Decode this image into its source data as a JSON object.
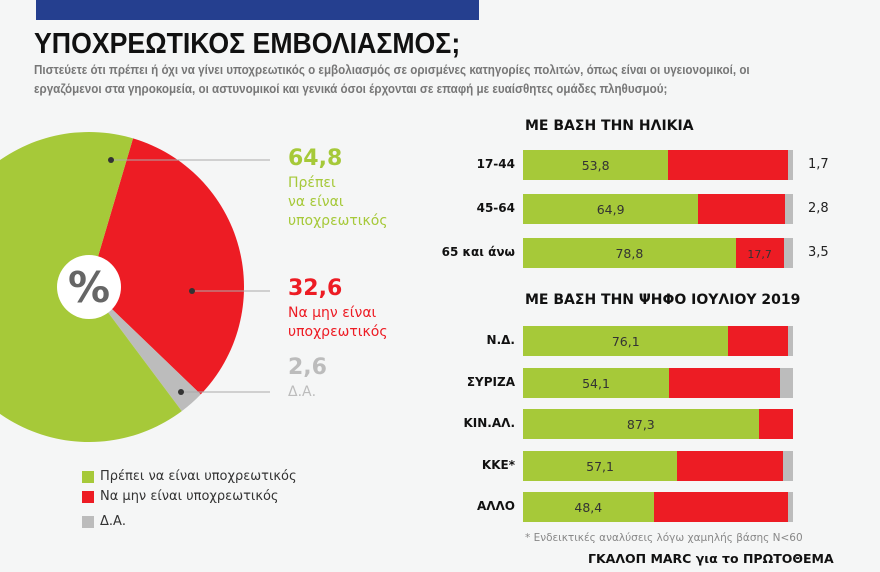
{
  "header": {
    "title": "ΥΠΟΧΡΕΩΤΙΚΟΣ ΕΜΒΟΛΙΑΣΜΟΣ;",
    "subtitle": "Πιστεύετε ότι πρέπει ή όχι να γίνει υποχρεωτικός ο εμβολιασμός σε ορισμένες κατηγορίες πολιτών, όπως είναι οι υγειονομικοί, οι εργαζόμενοι στα γηροκομεία, οι αστυνομικοί και γενικά όσοι έρχονται σε επαφή με ευαίσθητες ομάδες πληθυσμού;"
  },
  "colors": {
    "yes": "#a6c939",
    "no": "#ed1c24",
    "na": "#bcbcbc",
    "brand": "#253f8f"
  },
  "chart_data": [
    {
      "type": "pie",
      "center_label": "%",
      "slices": [
        {
          "name": "Πρέπει να είναι υποχρεωτικός",
          "value": 64.8,
          "label": "64,8",
          "text1": "Πρέπει",
          "text2": "να είναι",
          "text3": "υποχρεωτικός"
        },
        {
          "name": "Να μην είναι υποχρεωτικός",
          "value": 32.6,
          "label": "32,6",
          "text1": "Να μην είναι",
          "text2": "υποχρεωτικός"
        },
        {
          "name": "Δ.Α.",
          "value": 2.6,
          "label": "2,6",
          "text1": "Δ.Α."
        }
      ],
      "legend": [
        "Πρέπει να είναι υποχρεωτικός",
        "Να μην είναι υποχρεωτικός",
        "Δ.Α."
      ],
      "legend_placement": "bottom"
    },
    {
      "type": "bar",
      "stacked": true,
      "orientation": "horizontal",
      "title": "ΜΕ ΒΑΣΗ ΤΗΝ ΗΛΙΚΙΑ",
      "categories": [
        "17-44",
        "45-64",
        "65 και άνω"
      ],
      "series": [
        {
          "values": [
            53.8,
            64.9,
            78.8
          ],
          "labels": [
            "53,8",
            "64,9",
            "78,8"
          ]
        },
        {
          "values": [
            44.5,
            32.3,
            17.7
          ],
          "labels": [
            "",
            "",
            "17,7"
          ]
        },
        {
          "values": [
            1.7,
            2.8,
            3.5
          ],
          "labels": [
            "1,7",
            "2,8",
            "3,5"
          ]
        }
      ]
    },
    {
      "type": "bar",
      "stacked": true,
      "orientation": "horizontal",
      "title": "ΜΕ ΒΑΣΗ ΤΗΝ ΨΗΦΟ ΙΟΥΛΙΟΥ 2019",
      "categories": [
        "Ν.Δ.",
        "ΣΥΡΙΖΑ",
        "ΚΙΝ.ΑΛ.",
        "ΚΚΕ*",
        "ΑΛΛΟ"
      ],
      "series": [
        {
          "values": [
            76.1,
            54.1,
            87.3,
            57.1,
            48.4
          ],
          "labels": [
            "76,1",
            "54,1",
            "87,3",
            "57,1",
            "48,4"
          ]
        },
        {
          "values": [
            21.9,
            41.1,
            12.7,
            39.3,
            49.6
          ]
        },
        {
          "values": [
            2.0,
            4.8,
            0,
            3.6,
            2.0
          ]
        }
      ]
    }
  ],
  "footer": {
    "note": "* Ενδεικτικές αναλύσεις λόγω χαμηλής βάσης Ν<60",
    "source": "ΓΚΑΛΟΠ MARC για το ΠΡΩΤΟΘΕΜΑ"
  }
}
